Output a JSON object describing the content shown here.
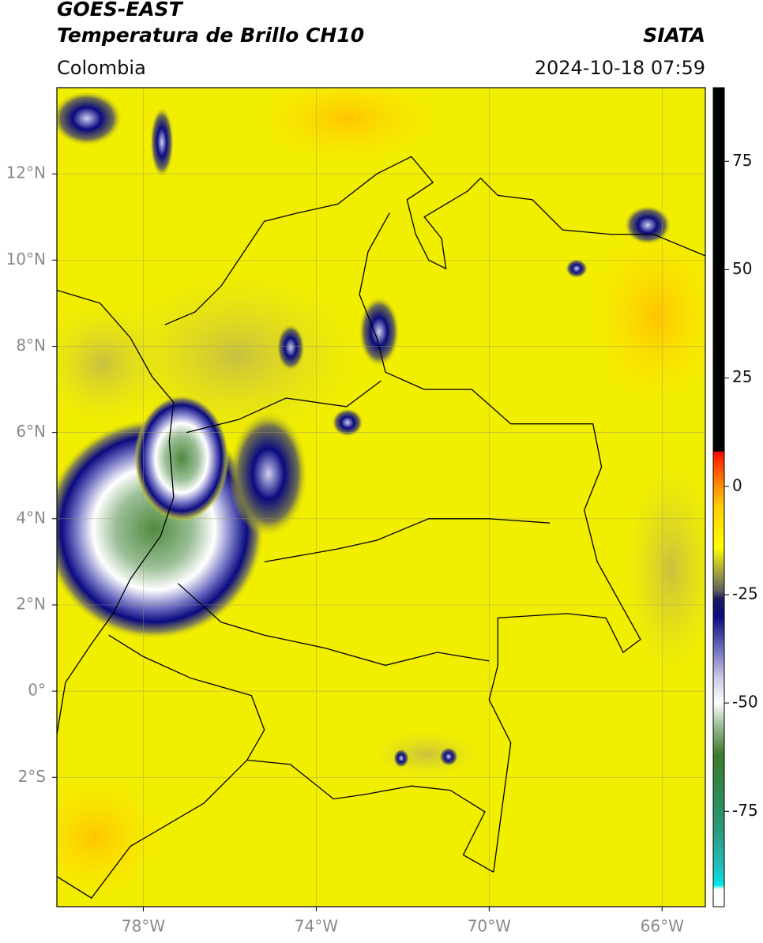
{
  "chart_data": {
    "type": "map",
    "title": "GOES-EAST",
    "subtitle": "Temperatura de Brillo CH10",
    "source": "SIATA",
    "region": "Colombia",
    "timestamp": "2024-10-18 07:59",
    "xlim": [
      -80,
      -65
    ],
    "ylim": [
      -5,
      14
    ],
    "xticks": [
      {
        "value": -78,
        "label": "78°W"
      },
      {
        "value": -74,
        "label": "74°W"
      },
      {
        "value": -70,
        "label": "70°W"
      },
      {
        "value": -66,
        "label": "66°W"
      }
    ],
    "yticks": [
      {
        "value": -2,
        "label": "2°S"
      },
      {
        "value": 0,
        "label": "0°"
      },
      {
        "value": 2,
        "label": "2°N"
      },
      {
        "value": 4,
        "label": "4°N"
      },
      {
        "value": 6,
        "label": "6°N"
      },
      {
        "value": 8,
        "label": "8°N"
      },
      {
        "value": 10,
        "label": "10°N"
      },
      {
        "value": 12,
        "label": "12°N"
      }
    ],
    "grid": true,
    "colorbar": {
      "lim": [
        -97,
        92
      ],
      "ticks": [
        -75,
        -50,
        -25,
        0,
        25,
        50,
        75
      ],
      "colormap": [
        {
          "value": -97,
          "color": "#ffffff"
        },
        {
          "value": -93,
          "color": "#ffffff"
        },
        {
          "value": -92,
          "color": "#00e5e5"
        },
        {
          "value": -88,
          "color": "#20c0c0"
        },
        {
          "value": -80,
          "color": "#2a9d80"
        },
        {
          "value": -72,
          "color": "#2e8b57"
        },
        {
          "value": -62,
          "color": "#3a7a2a"
        },
        {
          "value": -56,
          "color": "#8fb58a"
        },
        {
          "value": -50,
          "color": "#ffffff"
        },
        {
          "value": -44,
          "color": "#c8c8e8"
        },
        {
          "value": -36,
          "color": "#5a5ab0"
        },
        {
          "value": -30,
          "color": "#0a0a80"
        },
        {
          "value": -26,
          "color": "#1a1a60"
        },
        {
          "value": -24,
          "color": "#606060"
        },
        {
          "value": -20,
          "color": "#a0a040"
        },
        {
          "value": -14,
          "color": "#ffff00"
        },
        {
          "value": -5,
          "color": "#ffd000"
        },
        {
          "value": 0,
          "color": "#ff9000"
        },
        {
          "value": 6,
          "color": "#ff3000"
        },
        {
          "value": 8,
          "color": "#ff0000"
        },
        {
          "value": 8.1,
          "color": "#000000"
        },
        {
          "value": 92,
          "color": "#000000"
        }
      ]
    }
  }
}
